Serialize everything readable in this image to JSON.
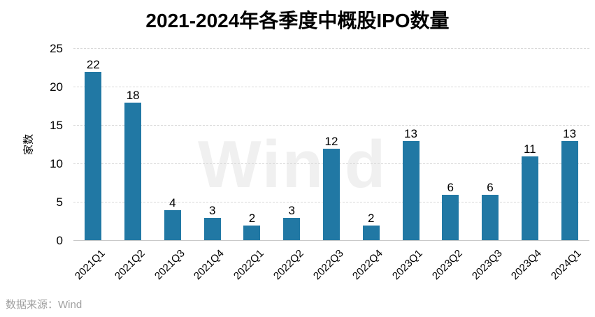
{
  "title": "2021-2024年各季度中概股IPO数量",
  "watermark": "Win.d",
  "source_note": "数据来源：Wind",
  "colors": {
    "bar": "#2178a4",
    "grid": "#d9d9d9",
    "axis_line": "#c9c9c9",
    "source_text": "#a0a0a0",
    "watermark": "#f0f0f0",
    "text": "#000000"
  },
  "chart_data": {
    "type": "bar",
    "title": "2021-2024年各季度中概股IPO数量",
    "categories": [
      "2021Q1",
      "2021Q2",
      "2021Q3",
      "2021Q4",
      "2022Q1",
      "2022Q2",
      "2022Q3",
      "2022Q4",
      "2023Q1",
      "2023Q2",
      "2023Q3",
      "2023Q4",
      "2024Q1"
    ],
    "values": [
      22,
      18,
      4,
      3,
      2,
      3,
      12,
      2,
      13,
      6,
      6,
      11,
      13
    ],
    "xlabel": "",
    "ylabel": "家数",
    "ylim": [
      0,
      25
    ],
    "yticks": [
      0,
      5,
      10,
      15,
      20,
      25
    ],
    "grid": "horizontal-dashed",
    "legend": "none",
    "bar_value_labels": true,
    "x_tick_rotation_deg": 45,
    "source": "数据来源：Wind",
    "watermark": "Win.d"
  }
}
